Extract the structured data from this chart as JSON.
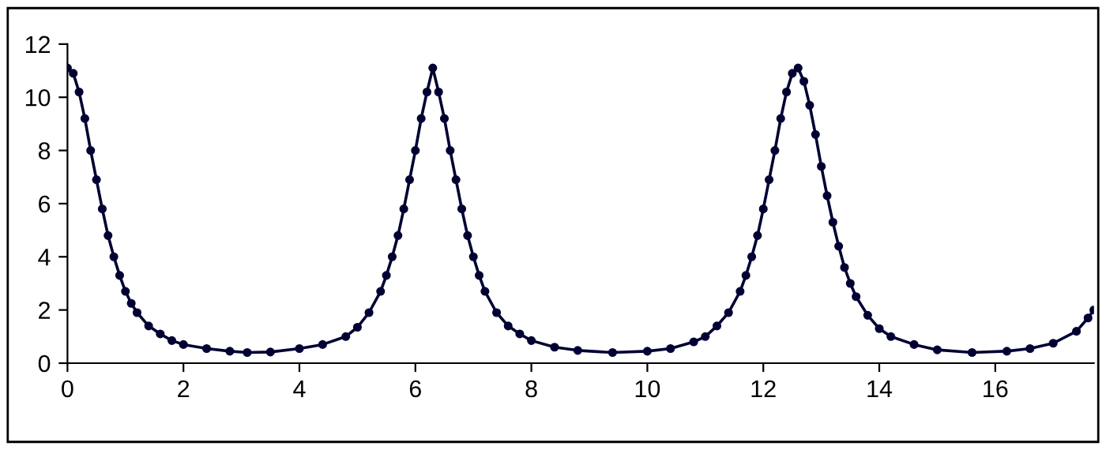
{
  "chart_data": {
    "type": "line",
    "marker": "circle",
    "line_style": "solid",
    "xlim": [
      0,
      17.7
    ],
    "xticks": [
      0,
      2,
      4,
      6,
      8,
      10,
      12,
      14,
      16
    ],
    "ylim": [
      0,
      12
    ],
    "yticks": [
      0,
      2,
      4,
      6,
      8,
      10,
      12
    ],
    "series": [
      {
        "color": "#000033",
        "x": [
          0,
          0.1,
          0.2,
          0.3,
          0.4,
          0.5,
          0.6,
          0.7,
          0.8,
          0.9,
          1.0,
          1.1,
          1.2,
          1.4,
          1.6,
          1.8,
          2.0,
          2.4,
          2.8,
          3.1,
          3.5,
          4.0,
          4.4,
          4.8,
          5.0,
          5.2,
          5.4,
          5.5,
          5.6,
          5.7,
          5.8,
          5.9,
          6.0,
          6.1,
          6.2,
          6.3,
          6.4,
          6.5,
          6.6,
          6.7,
          6.8,
          6.9,
          7.0,
          7.1,
          7.2,
          7.4,
          7.6,
          7.8,
          8.0,
          8.4,
          8.8,
          9.4,
          10.0,
          10.4,
          10.8,
          11.0,
          11.2,
          11.4,
          11.6,
          11.7,
          11.8,
          11.9,
          12.0,
          12.1,
          12.2,
          12.3,
          12.4,
          12.5,
          12.6,
          12.7,
          12.8,
          12.9,
          13.0,
          13.1,
          13.2,
          13.3,
          13.4,
          13.5,
          13.6,
          13.8,
          14.0,
          14.2,
          14.6,
          15.0,
          15.6,
          16.2,
          16.6,
          17.0,
          17.4,
          17.6,
          17.7
        ],
        "values": [
          11.1,
          10.9,
          10.2,
          9.2,
          8.0,
          6.9,
          5.8,
          4.8,
          4.0,
          3.3,
          2.7,
          2.25,
          1.9,
          1.4,
          1.1,
          0.85,
          0.7,
          0.55,
          0.45,
          0.4,
          0.42,
          0.55,
          0.7,
          1.0,
          1.35,
          1.9,
          2.7,
          3.3,
          4.0,
          4.8,
          5.8,
          6.9,
          8.0,
          9.2,
          10.2,
          11.1,
          10.2,
          9.2,
          8.0,
          6.9,
          5.8,
          4.8,
          4.0,
          3.3,
          2.7,
          1.9,
          1.4,
          1.1,
          0.85,
          0.6,
          0.48,
          0.4,
          0.45,
          0.55,
          0.8,
          1.0,
          1.4,
          1.9,
          2.7,
          3.3,
          4.0,
          4.8,
          5.8,
          6.9,
          8.0,
          9.2,
          10.2,
          10.9,
          11.1,
          10.6,
          9.7,
          8.6,
          7.4,
          6.3,
          5.3,
          4.4,
          3.6,
          3.0,
          2.5,
          1.8,
          1.3,
          1.0,
          0.7,
          0.5,
          0.4,
          0.45,
          0.55,
          0.75,
          1.2,
          1.7,
          2.0
        ]
      }
    ]
  }
}
